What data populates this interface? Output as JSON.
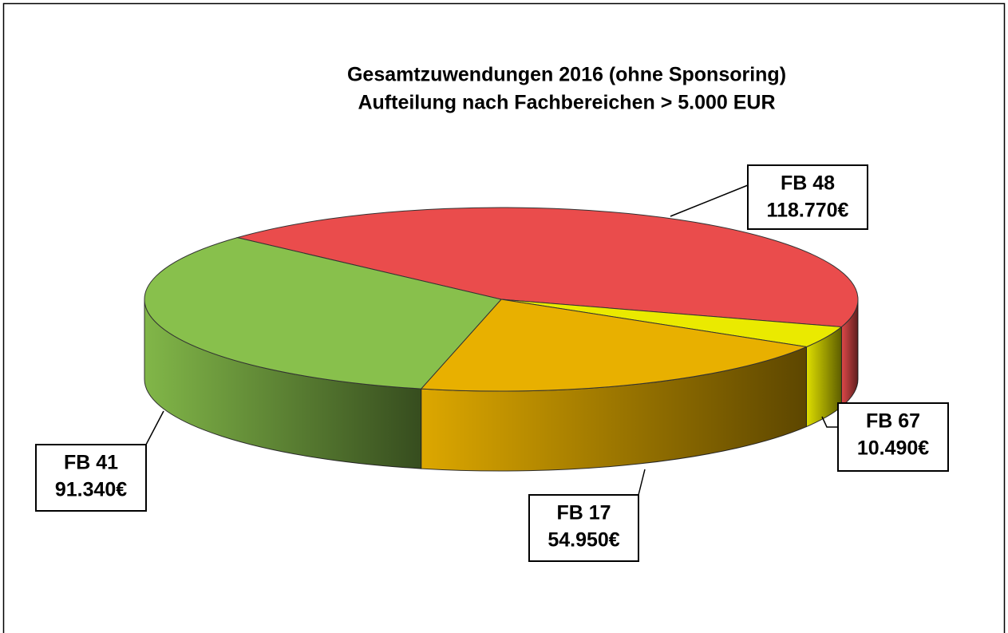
{
  "chart_data": {
    "type": "pie3d",
    "title": "Gesamtzuwendungen 2016 (ohne Sponsoring)",
    "subtitle": "Aufteilung nach Fachbereichen > 5.000 EUR",
    "categories": [
      "FB 48",
      "FB 67",
      "FB 17",
      "FB 41"
    ],
    "values": [
      118770,
      10490,
      54950,
      91340
    ],
    "value_labels": [
      "118.770€",
      "10.490€",
      "54.950€",
      "91.340€"
    ],
    "colors": [
      "#ea4c4c",
      "#eaea00",
      "#e8b000",
      "#88c04c"
    ]
  }
}
